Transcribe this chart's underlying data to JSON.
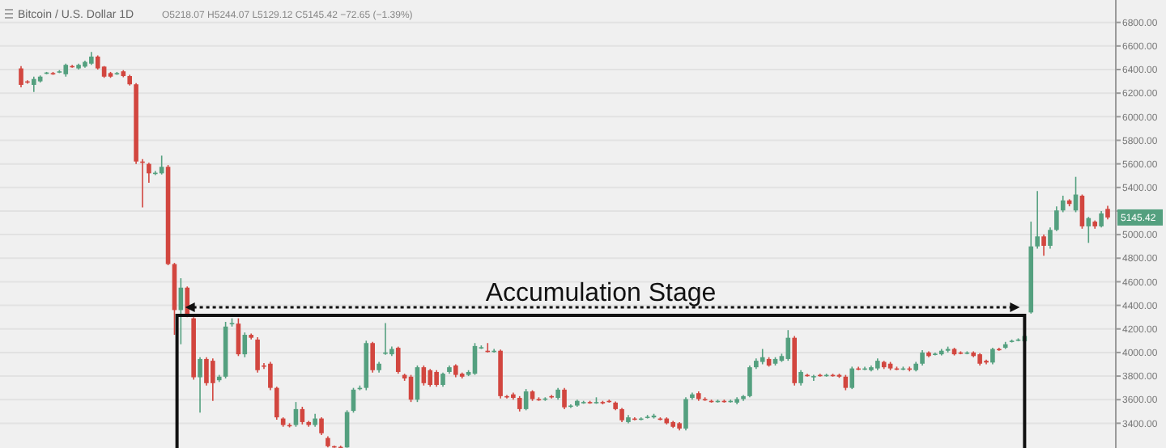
{
  "chart_data": {
    "type": "candlestick",
    "title": "Bitcoin / U.S. Dollar  1D",
    "subtitle": "O5218.07  H5244.07  L5129.12  C5145.42  −72.65 (−1.39%)",
    "annotations": [
      "Accumulation Stage",
      "5145.42"
    ],
    "grid": "y",
    "ylim": [
      3190,
      6990
    ],
    "yticks": [
      {
        "value": 3400,
        "label": "3400.00"
      },
      {
        "value": 3600,
        "label": "3600.00"
      },
      {
        "value": 3800,
        "label": "3800.00"
      },
      {
        "value": 4000,
        "label": "4000.00"
      },
      {
        "value": 4200,
        "label": "4200.00"
      },
      {
        "value": 4400,
        "label": "4400.00"
      },
      {
        "value": 4600,
        "label": "4600.00"
      },
      {
        "value": 4800,
        "label": "4800.00"
      },
      {
        "value": 5000,
        "label": "5000.00"
      },
      {
        "value": 5200,
        "label": null
      },
      {
        "value": 5400,
        "label": "5400.00"
      },
      {
        "value": 5600,
        "label": "5600.00"
      },
      {
        "value": 5800,
        "label": "5800.00"
      },
      {
        "value": 6000,
        "label": "6000.00"
      },
      {
        "value": 6200,
        "label": "6200.00"
      },
      {
        "value": 6400,
        "label": "6400.00"
      },
      {
        "value": 6600,
        "label": "6600.00"
      },
      {
        "value": 6800,
        "label": "6800.00"
      }
    ],
    "categories": [
      null,
      null,
      null,
      null,
      null,
      null,
      null,
      null,
      null,
      null,
      null,
      null,
      null,
      null,
      null,
      null,
      null,
      null,
      null,
      null,
      null,
      null,
      null,
      null,
      null,
      null,
      null,
      null,
      null,
      null,
      null,
      null,
      null,
      null,
      null,
      null,
      null,
      null,
      null,
      null,
      null,
      null,
      null,
      null,
      null,
      null,
      null,
      null,
      null,
      null,
      null,
      null,
      null,
      null,
      null,
      null,
      null,
      null,
      null,
      null,
      null,
      null,
      null,
      null,
      null,
      null,
      null,
      null,
      null,
      null,
      null,
      null,
      null,
      null,
      null,
      null,
      null,
      null,
      null,
      null,
      null,
      null,
      null,
      null,
      null,
      null,
      null,
      null,
      null,
      null,
      null,
      null,
      null,
      null,
      null,
      null,
      null,
      null,
      null,
      null,
      null,
      null,
      null,
      null,
      null,
      null,
      null,
      null,
      null,
      null,
      null,
      null,
      null,
      null,
      null,
      null,
      null,
      null,
      null,
      null,
      null,
      null,
      null,
      null,
      null,
      null,
      null,
      null,
      null,
      null,
      null,
      null,
      null,
      null,
      null,
      null,
      null,
      null,
      null,
      null,
      null,
      null,
      null,
      null,
      null,
      null,
      null,
      null,
      null,
      null,
      null,
      null,
      null,
      null,
      null,
      null,
      null,
      null,
      null,
      null,
      null,
      null,
      null,
      null,
      null,
      null,
      null,
      null,
      null,
      null,
      null
    ],
    "ohlc": [
      [
        6410,
        6430,
        6250,
        6270
      ],
      [
        6300,
        6310,
        6280,
        6290
      ],
      [
        6270,
        6340,
        6210,
        6320
      ],
      [
        6300,
        6350,
        6290,
        6340
      ],
      [
        6365,
        6380,
        6360,
        6375
      ],
      [
        6370,
        6380,
        6355,
        6365
      ],
      [
        6380,
        6395,
        6370,
        6385
      ],
      [
        6360,
        6450,
        6340,
        6440
      ],
      [
        6430,
        6440,
        6415,
        6425
      ],
      [
        6410,
        6450,
        6400,
        6440
      ],
      [
        6425,
        6475,
        6415,
        6465
      ],
      [
        6450,
        6550,
        6440,
        6510
      ],
      [
        6510,
        6520,
        6400,
        6410
      ],
      [
        6425,
        6430,
        6330,
        6340
      ],
      [
        6370,
        6380,
        6330,
        6340
      ],
      [
        6365,
        6380,
        6355,
        6370
      ],
      [
        6385,
        6395,
        6335,
        6345
      ],
      [
        6345,
        6355,
        6265,
        6275
      ],
      [
        6275,
        6285,
        5600,
        5620
      ],
      [
        5620,
        5640,
        5230,
        5615
      ],
      [
        5600,
        5610,
        5440,
        5520
      ],
      [
        5520,
        5540,
        5505,
        5525
      ],
      [
        5520,
        5670,
        5510,
        5575
      ],
      [
        5575,
        5590,
        4740,
        4750
      ],
      [
        4750,
        4760,
        4150,
        4360
      ],
      [
        4360,
        4630,
        4070,
        4550
      ],
      [
        4550,
        4560,
        4300,
        4315
      ],
      [
        4290,
        4300,
        3770,
        3790
      ],
      [
        3790,
        3960,
        3490,
        3945
      ],
      [
        3945,
        3960,
        3720,
        3740
      ],
      [
        3930,
        3950,
        3590,
        3740
      ],
      [
        3765,
        3810,
        3750,
        3795
      ],
      [
        3795,
        4260,
        3780,
        4220
      ],
      [
        4240,
        4290,
        4220,
        4250
      ],
      [
        4245,
        4290,
        3970,
        3985
      ],
      [
        3985,
        4170,
        3960,
        4150
      ],
      [
        4150,
        4160,
        4110,
        4125
      ],
      [
        4110,
        4130,
        3830,
        3850
      ],
      [
        3890,
        3910,
        3860,
        3885
      ],
      [
        3905,
        3920,
        3680,
        3700
      ],
      [
        3700,
        3710,
        3430,
        3450
      ],
      [
        3440,
        3450,
        3370,
        3385
      ],
      [
        3385,
        3400,
        3365,
        3380
      ],
      [
        3385,
        3580,
        3370,
        3520
      ],
      [
        3520,
        3540,
        3390,
        3410
      ],
      [
        3410,
        3420,
        3370,
        3385
      ],
      [
        3385,
        3480,
        3370,
        3440
      ],
      [
        3440,
        3450,
        3300,
        3315
      ],
      [
        3275,
        3290,
        3195,
        3205
      ],
      [
        3205,
        3210,
        3192,
        3195
      ],
      [
        3200,
        3210,
        3192,
        3195
      ],
      [
        3195,
        3510,
        3192,
        3495
      ],
      [
        3505,
        3700,
        3490,
        3685
      ],
      [
        3690,
        3720,
        3680,
        3700
      ],
      [
        3700,
        4100,
        3680,
        4080
      ],
      [
        4080,
        4090,
        3830,
        3850
      ],
      [
        3850,
        3920,
        3830,
        3905
      ],
      [
        3995,
        4250,
        3980,
        4000
      ],
      [
        3985,
        4050,
        3970,
        4030
      ],
      [
        4040,
        4050,
        3820,
        3835
      ],
      [
        3810,
        3820,
        3760,
        3780
      ],
      [
        3795,
        3810,
        3580,
        3600
      ],
      [
        3600,
        3890,
        3580,
        3875
      ],
      [
        3875,
        3890,
        3720,
        3740
      ],
      [
        3850,
        3860,
        3710,
        3725
      ],
      [
        3835,
        3850,
        3710,
        3725
      ],
      [
        3725,
        3830,
        3710,
        3820
      ],
      [
        3835,
        3890,
        3820,
        3875
      ],
      [
        3890,
        3900,
        3790,
        3810
      ],
      [
        3820,
        3830,
        3780,
        3795
      ],
      [
        3810,
        3850,
        3800,
        3835
      ],
      [
        3820,
        4080,
        3810,
        4055
      ],
      [
        4040,
        4060,
        4030,
        4045
      ],
      [
        4015,
        4080,
        4000,
        4010
      ],
      [
        4010,
        4030,
        4000,
        4015
      ],
      [
        4015,
        4025,
        3610,
        3630
      ],
      [
        3630,
        3640,
        3610,
        3625
      ],
      [
        3645,
        3660,
        3600,
        3615
      ],
      [
        3615,
        3630,
        3500,
        3520
      ],
      [
        3520,
        3690,
        3510,
        3670
      ],
      [
        3670,
        3680,
        3590,
        3605
      ],
      [
        3605,
        3620,
        3590,
        3600
      ],
      [
        3605,
        3620,
        3590,
        3610
      ],
      [
        3630,
        3640,
        3610,
        3625
      ],
      [
        3615,
        3700,
        3600,
        3685
      ],
      [
        3685,
        3700,
        3520,
        3535
      ],
      [
        3545,
        3560,
        3530,
        3550
      ],
      [
        3550,
        3600,
        3540,
        3590
      ],
      [
        3575,
        3590,
        3565,
        3580
      ],
      [
        3580,
        3590,
        3565,
        3575
      ],
      [
        3575,
        3620,
        3565,
        3580
      ],
      [
        3580,
        3590,
        3560,
        3575
      ],
      [
        3590,
        3600,
        3575,
        3585
      ],
      [
        3575,
        3585,
        3510,
        3520
      ],
      [
        3520,
        3530,
        3410,
        3425
      ],
      [
        3410,
        3470,
        3400,
        3450
      ],
      [
        3440,
        3450,
        3425,
        3435
      ],
      [
        3435,
        3450,
        3425,
        3440
      ],
      [
        3450,
        3470,
        3440,
        3455
      ],
      [
        3450,
        3480,
        3440,
        3465
      ],
      [
        3440,
        3450,
        3425,
        3435
      ],
      [
        3440,
        3450,
        3390,
        3400
      ],
      [
        3410,
        3420,
        3360,
        3370
      ],
      [
        3400,
        3410,
        3340,
        3355
      ],
      [
        3355,
        3620,
        3340,
        3605
      ],
      [
        3615,
        3660,
        3600,
        3645
      ],
      [
        3655,
        3670,
        3590,
        3605
      ],
      [
        3605,
        3620,
        3590,
        3600
      ],
      [
        3590,
        3600,
        3575,
        3585
      ],
      [
        3585,
        3600,
        3575,
        3590
      ],
      [
        3590,
        3600,
        3575,
        3585
      ],
      [
        3585,
        3600,
        3575,
        3590
      ],
      [
        3575,
        3620,
        3560,
        3605
      ],
      [
        3605,
        3640,
        3590,
        3630
      ],
      [
        3630,
        3890,
        3620,
        3875
      ],
      [
        3875,
        3950,
        3860,
        3930
      ],
      [
        3920,
        4030,
        3900,
        3960
      ],
      [
        3945,
        3960,
        3880,
        3890
      ],
      [
        3905,
        3960,
        3890,
        3945
      ],
      [
        3930,
        3990,
        3920,
        3970
      ],
      [
        3945,
        4190,
        3930,
        4125
      ],
      [
        4125,
        4140,
        3720,
        3740
      ],
      [
        3740,
        3850,
        3720,
        3835
      ],
      [
        3810,
        3820,
        3795,
        3805
      ],
      [
        3795,
        3810,
        3760,
        3800
      ],
      [
        3810,
        3820,
        3795,
        3805
      ],
      [
        3805,
        3820,
        3795,
        3810
      ],
      [
        3810,
        3820,
        3795,
        3805
      ],
      [
        3810,
        3820,
        3785,
        3795
      ],
      [
        3795,
        3810,
        3680,
        3700
      ],
      [
        3700,
        3880,
        3690,
        3865
      ],
      [
        3865,
        3880,
        3850,
        3860
      ],
      [
        3860,
        3880,
        3850,
        3865
      ],
      [
        3850,
        3890,
        3840,
        3875
      ],
      [
        3865,
        3950,
        3850,
        3930
      ],
      [
        3920,
        3930,
        3860,
        3875
      ],
      [
        3905,
        3920,
        3850,
        3865
      ],
      [
        3865,
        3880,
        3850,
        3860
      ],
      [
        3860,
        3880,
        3850,
        3865
      ],
      [
        3865,
        3880,
        3840,
        3860
      ],
      [
        3850,
        3920,
        3840,
        3905
      ],
      [
        3905,
        4020,
        3890,
        4000
      ],
      [
        4000,
        4010,
        3960,
        3970
      ],
      [
        3985,
        4000,
        3975,
        3990
      ],
      [
        3985,
        4030,
        3975,
        4015
      ],
      [
        4015,
        4050,
        4000,
        4030
      ],
      [
        4030,
        4040,
        3975,
        3985
      ],
      [
        4000,
        4010,
        3985,
        3995
      ],
      [
        3995,
        4010,
        3985,
        4000
      ],
      [
        4000,
        4010,
        3960,
        3970
      ],
      [
        3985,
        3995,
        3890,
        3905
      ],
      [
        3930,
        3940,
        3900,
        3915
      ],
      [
        3915,
        4040,
        3900,
        4030
      ],
      [
        4030,
        4040,
        4015,
        4025
      ],
      [
        4040,
        4090,
        4030,
        4070
      ],
      [
        4095,
        4110,
        4085,
        4100
      ],
      [
        4105,
        4120,
        4095,
        4110
      ],
      [
        4095,
        4150,
        4080,
        4140
      ],
      [
        4340,
        5110,
        4330,
        4900
      ],
      [
        4900,
        5370,
        4880,
        4985
      ],
      [
        4985,
        5000,
        4820,
        4905
      ],
      [
        4905,
        5060,
        4880,
        5040
      ],
      [
        5040,
        5240,
        5030,
        5205
      ],
      [
        5205,
        5330,
        5190,
        5290
      ],
      [
        5290,
        5300,
        5240,
        5260
      ],
      [
        5205,
        5490,
        5190,
        5340
      ],
      [
        5330,
        5340,
        5050,
        5070
      ],
      [
        5070,
        5150,
        4930,
        5140
      ],
      [
        5110,
        5120,
        5050,
        5070
      ],
      [
        5070,
        5200,
        5060,
        5180
      ],
      [
        5218.07,
        5244.07,
        5129.12,
        5145.42
      ]
    ]
  }
}
